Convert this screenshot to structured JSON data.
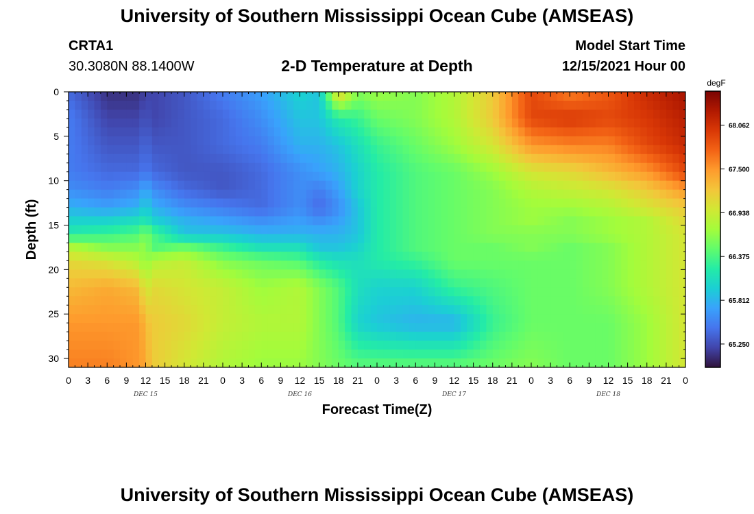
{
  "header": {
    "title": "University of Southern Mississippi Ocean Cube (AMSEAS)",
    "station_id": "CRTA1",
    "station_coords": "30.3080N  88.1400W",
    "plot_title": "2-D Temperature at Depth",
    "model_start_label": "Model Start Time",
    "model_start_value": "12/15/2021 Hour 00"
  },
  "footer": {
    "title": "University of Southern Mississippi Ocean Cube (AMSEAS)"
  },
  "chart_data": {
    "type": "heatmap",
    "title": "2-D Temperature at Depth",
    "xlabel": "Forecast Time(Z)",
    "ylabel": "Depth (ft)",
    "x_tick_labels": [
      "0",
      "3",
      "6",
      "9",
      "12",
      "15",
      "18",
      "21",
      "0",
      "3",
      "6",
      "9",
      "12",
      "15",
      "18",
      "21",
      "0",
      "3",
      "6",
      "9",
      "12",
      "15",
      "18",
      "21",
      "0",
      "3",
      "6",
      "9",
      "12",
      "15",
      "18",
      "21",
      "0"
    ],
    "day_labels": [
      "DEC 15",
      "DEC 16",
      "DEC 17",
      "DEC 18"
    ],
    "x_range_hours": [
      0,
      96
    ],
    "y_ticks": [
      0,
      5,
      10,
      15,
      20,
      25,
      30
    ],
    "ylim": [
      0,
      31
    ],
    "y_inverted": true,
    "colorbar": {
      "unit": "degF",
      "tick_labels": [
        "68.062",
        "67.500",
        "66.938",
        "66.375",
        "65.812",
        "65.250"
      ],
      "tick_values": [
        68.062,
        67.5,
        66.938,
        66.375,
        65.812,
        65.25
      ],
      "range": [
        64.95,
        68.5
      ],
      "colormap": [
        "#30123b",
        "#4145ab",
        "#4675ed",
        "#39a2fc",
        "#1bcfd4",
        "#24eca6",
        "#61fc6c",
        "#a4fc3b",
        "#d1e834",
        "#f3c63a",
        "#fe9b2d",
        "#f36315",
        "#d93806",
        "#b11901",
        "#7a0403"
      ]
    },
    "depths_ft": [
      0,
      3,
      6,
      9,
      11,
      13,
      14.5,
      16,
      17.5,
      19,
      22,
      26,
      30.5
    ],
    "times_hours": [
      0,
      6,
      11,
      12,
      13,
      18,
      24,
      30,
      36,
      39,
      42,
      45,
      48,
      54,
      60,
      66,
      72,
      78,
      84,
      90,
      96
    ],
    "temperature_degF": [
      [
        65.4,
        65.1,
        65.1,
        65.2,
        65.2,
        65.3,
        65.5,
        65.7,
        66.0,
        65.9,
        67.2,
        66.6,
        66.7,
        66.6,
        66.8,
        67.2,
        67.9,
        67.6,
        67.8,
        68.1,
        68.3
      ],
      [
        65.5,
        65.2,
        65.2,
        65.3,
        65.2,
        65.3,
        65.4,
        65.6,
        65.9,
        65.9,
        66.2,
        66.3,
        66.5,
        66.6,
        66.8,
        67.2,
        67.9,
        68.0,
        67.9,
        68.0,
        68.2
      ],
      [
        65.5,
        65.3,
        65.3,
        65.4,
        65.3,
        65.3,
        65.4,
        65.5,
        65.8,
        65.8,
        65.9,
        66.1,
        66.3,
        66.5,
        66.7,
        67.0,
        67.5,
        67.6,
        67.6,
        67.9,
        68.1
      ],
      [
        65.5,
        65.4,
        65.4,
        65.5,
        65.4,
        65.3,
        65.3,
        65.4,
        65.6,
        65.7,
        65.8,
        66.0,
        66.2,
        66.4,
        66.5,
        66.7,
        67.0,
        67.1,
        67.3,
        67.5,
        67.9
      ],
      [
        65.6,
        65.5,
        65.6,
        65.8,
        65.6,
        65.4,
        65.3,
        65.4,
        65.6,
        65.5,
        65.7,
        66.0,
        66.2,
        66.4,
        66.5,
        66.6,
        66.8,
        66.9,
        67.0,
        67.2,
        67.5
      ],
      [
        65.8,
        65.7,
        65.8,
        66.0,
        65.8,
        65.6,
        65.5,
        65.4,
        65.6,
        65.4,
        65.6,
        65.9,
        66.2,
        66.4,
        66.5,
        66.6,
        66.7,
        66.7,
        66.8,
        67.0,
        67.2
      ],
      [
        66.0,
        66.0,
        66.1,
        66.2,
        66.0,
        65.8,
        65.7,
        65.6,
        65.7,
        65.6,
        65.7,
        65.9,
        66.2,
        66.4,
        66.5,
        66.6,
        66.7,
        66.6,
        66.7,
        66.8,
        67.1
      ],
      [
        66.2,
        66.3,
        66.4,
        66.6,
        66.4,
        65.9,
        65.9,
        65.8,
        65.8,
        65.8,
        65.8,
        65.9,
        66.2,
        66.4,
        66.5,
        66.6,
        66.6,
        66.6,
        66.7,
        66.8,
        67.0
      ],
      [
        66.8,
        66.6,
        66.6,
        66.7,
        66.4,
        66.5,
        66.3,
        66.1,
        66.1,
        65.9,
        65.9,
        66.0,
        66.2,
        66.4,
        66.5,
        66.5,
        66.6,
        66.5,
        66.6,
        66.8,
        67.0
      ],
      [
        67.1,
        67.0,
        66.8,
        66.6,
        66.8,
        66.9,
        66.6,
        66.5,
        66.4,
        66.2,
        66.1,
        66.1,
        66.2,
        66.3,
        66.5,
        66.5,
        66.5,
        66.5,
        66.6,
        66.8,
        67.0
      ],
      [
        67.3,
        67.4,
        67.3,
        66.9,
        67.1,
        67.0,
        66.9,
        66.7,
        66.8,
        66.6,
        66.4,
        66.1,
        66.0,
        66.0,
        66.3,
        66.4,
        66.5,
        66.5,
        66.6,
        66.8,
        67.0
      ],
      [
        67.5,
        67.5,
        67.5,
        67.3,
        67.2,
        67.1,
        66.9,
        66.8,
        66.8,
        66.6,
        66.4,
        66.0,
        65.9,
        65.8,
        65.8,
        66.3,
        66.5,
        66.5,
        66.5,
        66.7,
        67.0
      ],
      [
        67.6,
        67.6,
        67.5,
        67.4,
        67.2,
        67.0,
        66.8,
        66.7,
        66.7,
        66.6,
        66.5,
        66.4,
        66.4,
        66.4,
        66.4,
        66.5,
        66.6,
        66.5,
        66.5,
        66.7,
        67.0
      ]
    ]
  }
}
